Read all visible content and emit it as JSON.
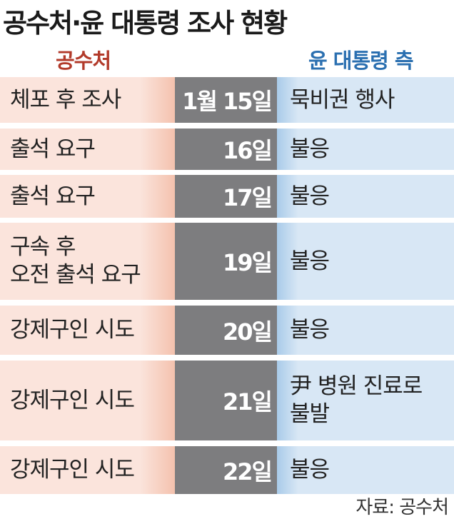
{
  "title": "공수처·윤 대통령 조사 현황",
  "headers": {
    "left": "공수처",
    "right": "윤 대통령 측"
  },
  "rows": [
    {
      "cio": "체포 후 조사",
      "date": "1월 15일",
      "yoon": "묵비권 행사"
    },
    {
      "cio": "출석 요구",
      "date": "16일",
      "yoon": "불응"
    },
    {
      "cio": "출석 요구",
      "date": "17일",
      "yoon": "불응"
    },
    {
      "cio": "구속 후\n오전 출석 요구",
      "date": "19일",
      "yoon": "불응"
    },
    {
      "cio": "강제구인 시도",
      "date": "20일",
      "yoon": "불응"
    },
    {
      "cio": "강제구인 시도",
      "date": "21일",
      "yoon": "尹 병원 진료로\n불발"
    },
    {
      "cio": "강제구인 시도",
      "date": "22일",
      "yoon": "불응"
    }
  ],
  "source": "자료: 공수처",
  "colors": {
    "left_bg": "#fbe4dc",
    "date_bg": "#7d7d7f",
    "right_bg": "#d8e7f5",
    "left_header": "#b23a2a",
    "right_header": "#2a6fb0"
  }
}
